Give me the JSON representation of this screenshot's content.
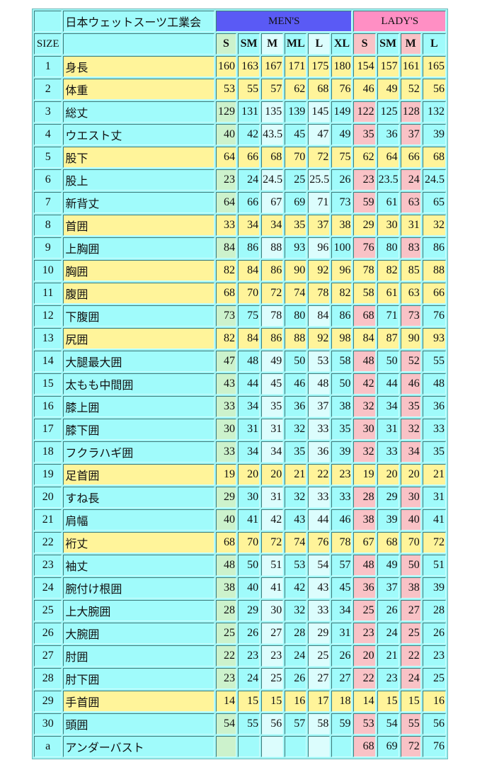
{
  "header": {
    "org": "日本ウェットスーツ工業会",
    "men": "MEN'S",
    "lady": "LADY'S",
    "size_label": "SIZE"
  },
  "size_columns": [
    "S",
    "SM",
    "M",
    "ML",
    "L",
    "XL",
    "S",
    "SM",
    "M",
    "L"
  ],
  "colors": {
    "men_header": "#5a5af5",
    "lady_header": "#ff8fc4",
    "highlight_row": "#fff49a",
    "cell": "#a0fbfb",
    "men_s": "#ccf2cc",
    "light": "#dcfdfd",
    "lady_pink": "#f9c2c6"
  },
  "rows": [
    {
      "no": "1",
      "name": "身長",
      "highlight": true,
      "values": [
        "160",
        "163",
        "167",
        "171",
        "175",
        "180",
        "154",
        "157",
        "161",
        "165"
      ]
    },
    {
      "no": "2",
      "name": "体重",
      "highlight": true,
      "values": [
        "53",
        "55",
        "57",
        "62",
        "68",
        "76",
        "46",
        "49",
        "52",
        "56"
      ]
    },
    {
      "no": "3",
      "name": "総丈",
      "highlight": false,
      "values": [
        "129",
        "131",
        "135",
        "139",
        "145",
        "149",
        "122",
        "125",
        "128",
        "132"
      ]
    },
    {
      "no": "4",
      "name": "ウエスト丈",
      "highlight": false,
      "values": [
        "40",
        "42",
        "43.5",
        "45",
        "47",
        "49",
        "35",
        "36",
        "37",
        "39"
      ]
    },
    {
      "no": "5",
      "name": "股下",
      "highlight": true,
      "values": [
        "64",
        "66",
        "68",
        "70",
        "72",
        "75",
        "62",
        "64",
        "66",
        "68"
      ]
    },
    {
      "no": "6",
      "name": "股上",
      "highlight": false,
      "values": [
        "23",
        "24",
        "24.5",
        "25",
        "25.5",
        "26",
        "23",
        "23.5",
        "24",
        "24.5"
      ]
    },
    {
      "no": "7",
      "name": "新背丈",
      "highlight": false,
      "values": [
        "64",
        "66",
        "67",
        "69",
        "71",
        "73",
        "59",
        "61",
        "63",
        "65"
      ]
    },
    {
      "no": "8",
      "name": "首囲",
      "highlight": true,
      "values": [
        "33",
        "34",
        "34",
        "35",
        "37",
        "38",
        "29",
        "30",
        "31",
        "32"
      ]
    },
    {
      "no": "9",
      "name": "上胸囲",
      "highlight": false,
      "values": [
        "84",
        "86",
        "88",
        "93",
        "96",
        "100",
        "76",
        "80",
        "83",
        "86"
      ]
    },
    {
      "no": "10",
      "name": "胸囲",
      "highlight": true,
      "values": [
        "82",
        "84",
        "86",
        "90",
        "92",
        "96",
        "78",
        "82",
        "85",
        "88"
      ]
    },
    {
      "no": "11",
      "name": "腹囲",
      "highlight": true,
      "values": [
        "68",
        "70",
        "72",
        "74",
        "78",
        "82",
        "58",
        "61",
        "63",
        "66"
      ]
    },
    {
      "no": "12",
      "name": "下腹囲",
      "highlight": false,
      "values": [
        "73",
        "75",
        "78",
        "80",
        "84",
        "86",
        "68",
        "71",
        "73",
        "76"
      ]
    },
    {
      "no": "13",
      "name": "尻囲",
      "highlight": true,
      "values": [
        "82",
        "84",
        "86",
        "88",
        "92",
        "98",
        "84",
        "87",
        "90",
        "93"
      ]
    },
    {
      "no": "14",
      "name": "大腿最大囲",
      "highlight": false,
      "values": [
        "47",
        "48",
        "49",
        "50",
        "53",
        "58",
        "48",
        "50",
        "52",
        "55"
      ]
    },
    {
      "no": "15",
      "name": "太もも中間囲",
      "highlight": false,
      "values": [
        "43",
        "44",
        "45",
        "46",
        "48",
        "50",
        "42",
        "44",
        "46",
        "48"
      ]
    },
    {
      "no": "16",
      "name": "膝上囲",
      "highlight": false,
      "values": [
        "33",
        "34",
        "35",
        "36",
        "37",
        "38",
        "32",
        "34",
        "35",
        "36"
      ]
    },
    {
      "no": "17",
      "name": "膝下囲",
      "highlight": false,
      "values": [
        "30",
        "31",
        "31",
        "32",
        "33",
        "35",
        "30",
        "31",
        "32",
        "33"
      ]
    },
    {
      "no": "18",
      "name": "フクラハギ囲",
      "highlight": false,
      "values": [
        "33",
        "34",
        "34",
        "35",
        "36",
        "39",
        "32",
        "33",
        "34",
        "35"
      ]
    },
    {
      "no": "19",
      "name": "足首囲",
      "highlight": true,
      "values": [
        "19",
        "20",
        "20",
        "21",
        "22",
        "23",
        "19",
        "20",
        "20",
        "21"
      ]
    },
    {
      "no": "20",
      "name": "すね長",
      "highlight": false,
      "values": [
        "29",
        "30",
        "31",
        "32",
        "33",
        "33",
        "28",
        "29",
        "30",
        "31"
      ]
    },
    {
      "no": "21",
      "name": "肩幅",
      "highlight": false,
      "values": [
        "40",
        "41",
        "42",
        "43",
        "44",
        "46",
        "38",
        "39",
        "40",
        "41"
      ]
    },
    {
      "no": "22",
      "name": "裄丈",
      "highlight": true,
      "values": [
        "68",
        "70",
        "72",
        "74",
        "76",
        "78",
        "67",
        "68",
        "70",
        "72"
      ]
    },
    {
      "no": "23",
      "name": "袖丈",
      "highlight": false,
      "values": [
        "48",
        "50",
        "51",
        "53",
        "54",
        "57",
        "48",
        "49",
        "50",
        "51"
      ]
    },
    {
      "no": "24",
      "name": "腕付け根囲",
      "highlight": false,
      "values": [
        "38",
        "40",
        "41",
        "42",
        "43",
        "45",
        "36",
        "37",
        "38",
        "39"
      ]
    },
    {
      "no": "25",
      "name": "上大腕囲",
      "highlight": false,
      "values": [
        "28",
        "29",
        "30",
        "32",
        "33",
        "34",
        "25",
        "26",
        "27",
        "28"
      ]
    },
    {
      "no": "26",
      "name": "大腕囲",
      "highlight": false,
      "values": [
        "25",
        "26",
        "27",
        "28",
        "29",
        "31",
        "23",
        "24",
        "25",
        "26"
      ]
    },
    {
      "no": "27",
      "name": "肘囲",
      "highlight": false,
      "values": [
        "22",
        "23",
        "23",
        "24",
        "25",
        "26",
        "20",
        "21",
        "22",
        "23"
      ]
    },
    {
      "no": "28",
      "name": "肘下囲",
      "highlight": false,
      "values": [
        "23",
        "24",
        "25",
        "26",
        "27",
        "27",
        "22",
        "23",
        "24",
        "25"
      ]
    },
    {
      "no": "29",
      "name": "手首囲",
      "highlight": true,
      "values": [
        "14",
        "15",
        "15",
        "16",
        "17",
        "18",
        "14",
        "15",
        "15",
        "16"
      ]
    },
    {
      "no": "30",
      "name": "頭囲",
      "highlight": false,
      "values": [
        "54",
        "55",
        "56",
        "57",
        "58",
        "59",
        "53",
        "54",
        "55",
        "56"
      ]
    },
    {
      "no": "a",
      "name": "アンダーバスト",
      "highlight": false,
      "values": [
        "",
        "",
        "",
        "",
        "",
        "",
        "68",
        "69",
        "72",
        "76"
      ]
    }
  ]
}
